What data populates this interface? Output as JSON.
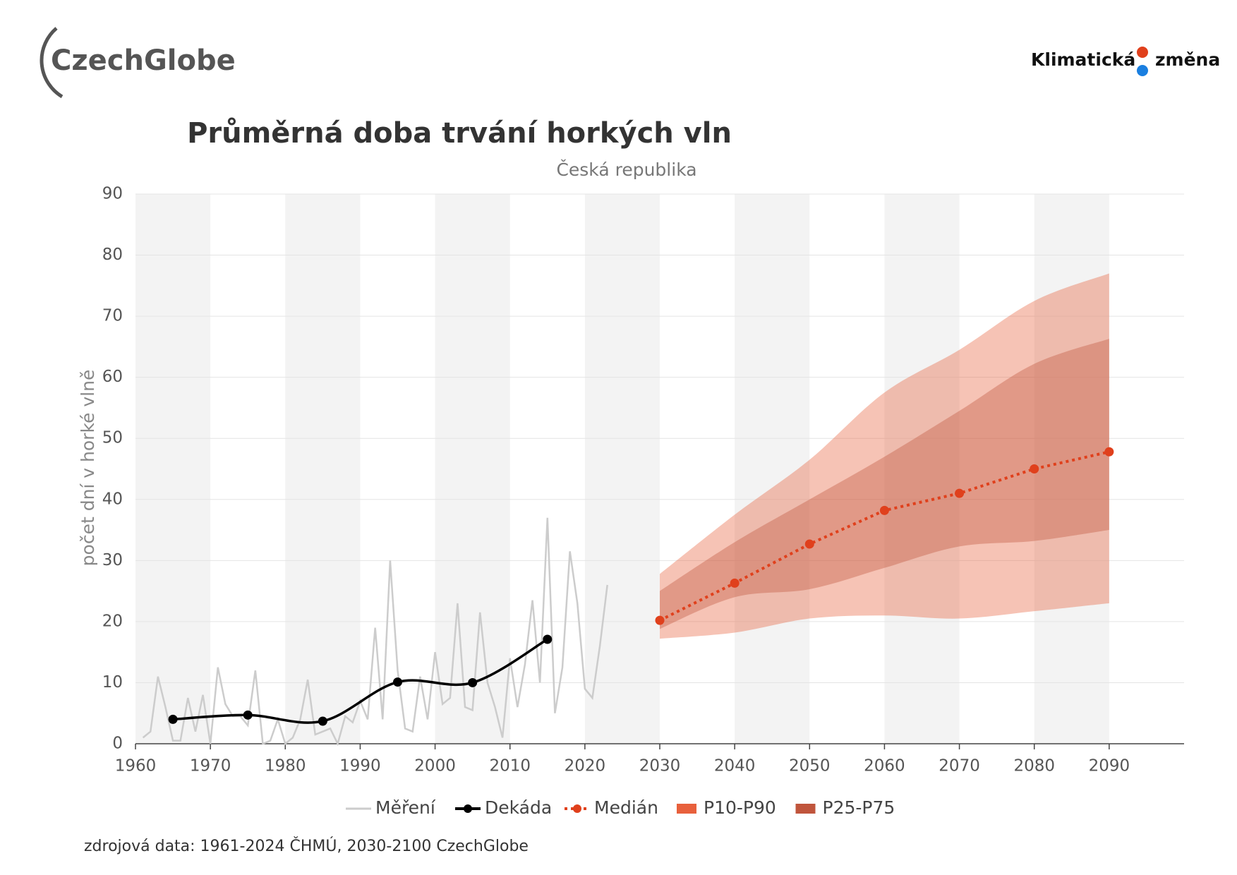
{
  "header": {
    "logo_left": "CzechGlobe",
    "logo_right_1": "Klimatická",
    "logo_right_2": "změna"
  },
  "chart_data": {
    "type": "line",
    "title": "Průměrná doba trvání horkých vln",
    "subtitle": "Česká republika",
    "ylabel": "počet dní v horké vlně",
    "source": "zdrojová data: 1961-2024 ČHMÚ, 2030-2100 CzechGlobe",
    "xlim": [
      1960,
      2100
    ],
    "xticks": [
      1960,
      1970,
      1980,
      1990,
      2000,
      2010,
      2020,
      2030,
      2040,
      2050,
      2060,
      2070,
      2080,
      2090
    ],
    "ylim": [
      0,
      90
    ],
    "yticks": [
      0,
      10,
      20,
      30,
      40,
      50,
      60,
      70,
      80,
      90
    ],
    "grid": true,
    "legend": "bottom",
    "series": [
      {
        "name": "Měření",
        "color": "#cccccc",
        "style": "line",
        "x": [
          1961,
          1962,
          1963,
          1964,
          1965,
          1966,
          1967,
          1968,
          1969,
          1970,
          1971,
          1972,
          1973,
          1974,
          1975,
          1976,
          1977,
          1978,
          1979,
          1980,
          1981,
          1982,
          1983,
          1984,
          1985,
          1986,
          1987,
          1988,
          1989,
          1990,
          1991,
          1992,
          1993,
          1994,
          1995,
          1996,
          1997,
          1998,
          1999,
          2000,
          2001,
          2002,
          2003,
          2004,
          2005,
          2006,
          2007,
          2008,
          2009,
          2010,
          2011,
          2012,
          2013,
          2014,
          2015,
          2016,
          2017,
          2018,
          2019,
          2020,
          2021,
          2022,
          2023
        ],
        "values": [
          1,
          2,
          11,
          6,
          0.5,
          0.5,
          7.5,
          2,
          8,
          0,
          12.5,
          6.5,
          4.5,
          4.5,
          3,
          12,
          0,
          0.5,
          4,
          0,
          1,
          4,
          10.5,
          1.5,
          2,
          2.5,
          0,
          4.5,
          3.5,
          7,
          4,
          19,
          4,
          30,
          12,
          2.5,
          2,
          11,
          4,
          15,
          6.5,
          7.5,
          23,
          6,
          5.5,
          21.5,
          10,
          6,
          1,
          14,
          6,
          13,
          23.5,
          10,
          37,
          5,
          12.5,
          31.5,
          23,
          9,
          7.5,
          16,
          26
        ]
      },
      {
        "name": "Dekáda",
        "color": "#000000",
        "style": "smooth-dots",
        "x": [
          1965,
          1975,
          1985,
          1995,
          2005,
          2015
        ],
        "values": [
          4,
          4.7,
          3.7,
          10.1,
          10,
          17.1
        ]
      },
      {
        "name": "Medián",
        "color": "#e0401c",
        "style": "dotted-dots",
        "x": [
          2030,
          2040,
          2050,
          2060,
          2070,
          2080,
          2090
        ],
        "values": [
          20.2,
          26.3,
          32.7,
          38.2,
          41,
          45,
          47.8
        ]
      }
    ],
    "bands": [
      {
        "name": "P10-P90",
        "color": "#e8603c",
        "x": [
          2030,
          2040,
          2050,
          2060,
          2070,
          2080,
          2090
        ],
        "lower": [
          17.2,
          18.2,
          20.5,
          21,
          20.5,
          21.7,
          23
        ],
        "upper": [
          27.8,
          37.5,
          46.5,
          57.5,
          64.5,
          72.5,
          77
        ]
      },
      {
        "name": "P25-P75",
        "color": "#c0553c",
        "x": [
          2030,
          2040,
          2050,
          2060,
          2070,
          2080,
          2090
        ],
        "lower": [
          18.8,
          24,
          25.3,
          28.8,
          32.3,
          33.2,
          35
        ],
        "upper": [
          25,
          33,
          40,
          47,
          54.5,
          62.2,
          66.3
        ]
      }
    ]
  }
}
